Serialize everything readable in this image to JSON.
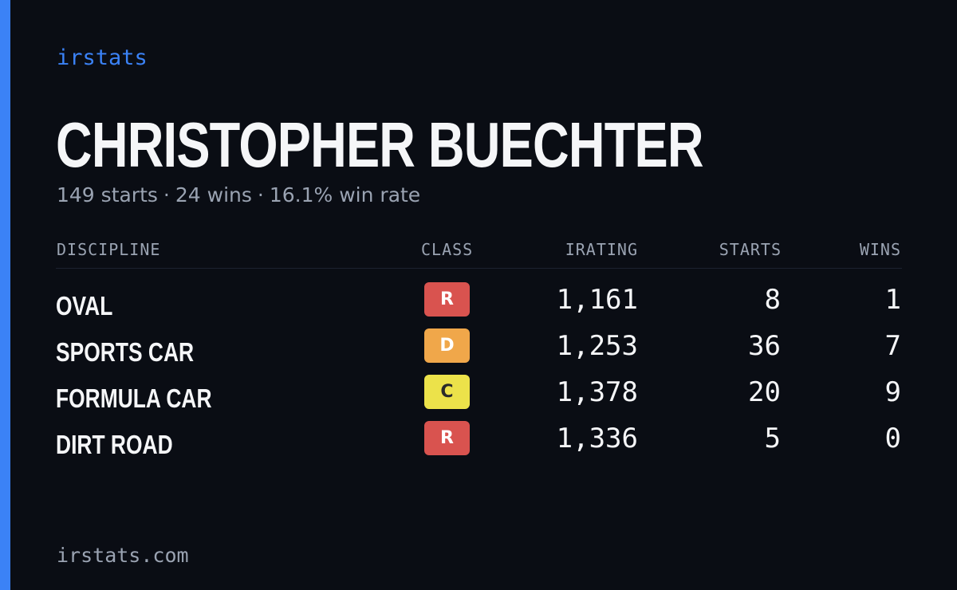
{
  "theme": {
    "accent_color": "#3b82f6",
    "background_color": "#0a0d14"
  },
  "brand": "irstats",
  "driver": {
    "name": "CHRISTOPHER BUECHTER"
  },
  "summary": {
    "starts": "149 starts",
    "wins": "24 wins",
    "win_rate": "16.1% win rate",
    "separator": "·"
  },
  "table": {
    "headers": {
      "discipline": "DISCIPLINE",
      "class": "CLASS",
      "irating": "IRATING",
      "starts": "STARTS",
      "wins": "WINS"
    },
    "rows": [
      {
        "discipline": "OVAL",
        "class": "R",
        "class_color": "#d9534f",
        "class_text_color": "#ffffff",
        "irating": "1,161",
        "starts": "8",
        "wins": "1"
      },
      {
        "discipline": "SPORTS CAR",
        "class": "D",
        "class_color": "#f0a74a",
        "class_text_color": "#ffffff",
        "irating": "1,253",
        "starts": "36",
        "wins": "7"
      },
      {
        "discipline": "FORMULA CAR",
        "class": "C",
        "class_color": "#ece24a",
        "class_text_color": "#2a2a2a",
        "irating": "1,378",
        "starts": "20",
        "wins": "9"
      },
      {
        "discipline": "DIRT ROAD",
        "class": "R",
        "class_color": "#d9534f",
        "class_text_color": "#ffffff",
        "irating": "1,336",
        "starts": "5",
        "wins": "0"
      }
    ]
  },
  "footer": {
    "site": "irstats.com"
  }
}
